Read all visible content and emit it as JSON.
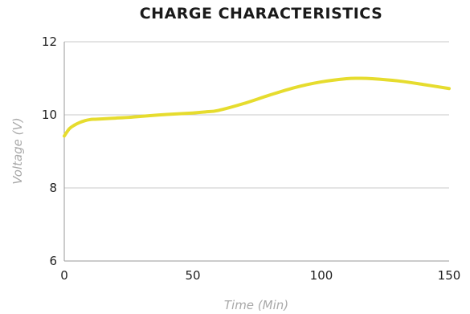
{
  "chart_data": {
    "type": "line",
    "title": "CHARGE CHARACTERISTICS",
    "xlabel": "Time (Min)",
    "ylabel": "Voltage (V)",
    "xlim": [
      0,
      150
    ],
    "ylim": [
      6,
      12
    ],
    "x_ticks": [
      0,
      50,
      100,
      150
    ],
    "y_ticks": [
      6,
      8,
      10,
      12
    ],
    "grid": "horizontal",
    "legend": "none",
    "series": [
      {
        "color": "#e6dc2e",
        "x": [
          0,
          2,
          4,
          6,
          8,
          10,
          12,
          15,
          20,
          25,
          30,
          40,
          50,
          55,
          60,
          70,
          80,
          90,
          100,
          110,
          115,
          120,
          130,
          140,
          150
        ],
        "y": [
          9.42,
          9.62,
          9.72,
          9.79,
          9.84,
          9.87,
          9.88,
          9.89,
          9.91,
          9.93,
          9.96,
          10.01,
          10.05,
          10.08,
          10.12,
          10.31,
          10.54,
          10.75,
          10.9,
          10.99,
          11.0,
          10.99,
          10.93,
          10.83,
          10.72
        ]
      }
    ]
  }
}
